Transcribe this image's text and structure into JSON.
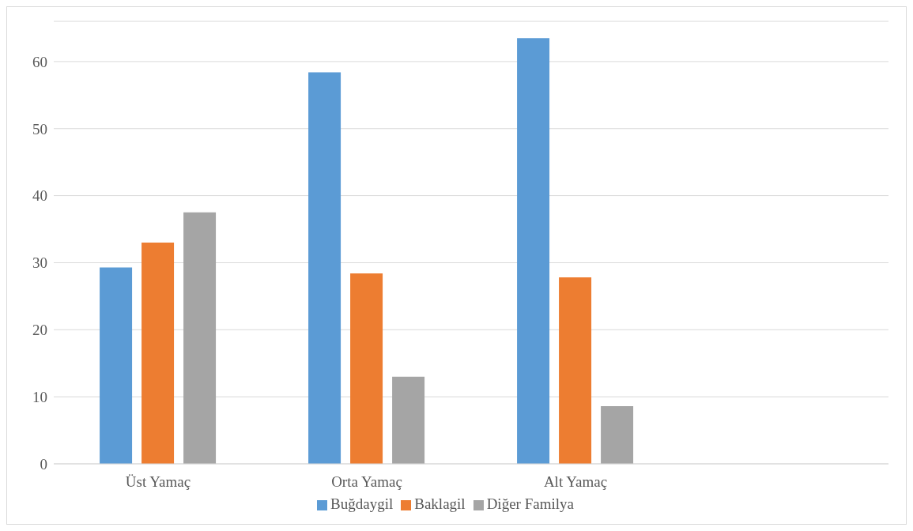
{
  "chart_data": {
    "type": "bar",
    "categories": [
      "Üst Yamaç",
      "Orta Yamaç",
      "Alt Yamaç",
      null
    ],
    "series": [
      {
        "name": "Buğdaygil",
        "color": "#5b9bd5",
        "values": [
          29.3,
          58.4,
          63.5,
          null
        ]
      },
      {
        "name": "Baklagil",
        "color": "#ed7d31",
        "values": [
          33.0,
          28.4,
          27.8,
          null
        ]
      },
      {
        "name": "Diğer Familya",
        "color": "#a5a5a5",
        "values": [
          37.5,
          13.0,
          8.6,
          null
        ]
      }
    ],
    "ylim": [
      0,
      66
    ],
    "yticks": [
      0,
      10,
      20,
      30,
      40,
      50,
      60
    ],
    "grid": "y",
    "legend": "bottom"
  }
}
